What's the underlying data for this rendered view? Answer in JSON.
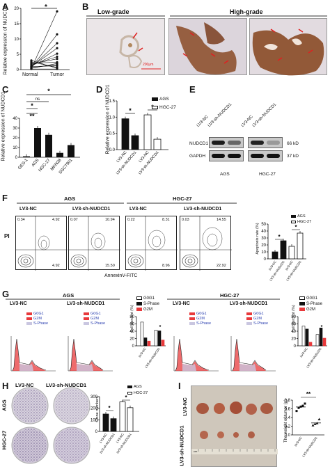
{
  "panels": {
    "A": {
      "letter": "A",
      "ylabel": "Relative expression of NUDCD1",
      "yticks": [
        "0",
        "5",
        "10",
        "15",
        "20"
      ],
      "categories": [
        "Normal",
        "Tumor"
      ],
      "sig": "*"
    },
    "B": {
      "letter": "B",
      "low_label": "Low-grade",
      "high_label": "High-grade",
      "scale_bar": "200μm"
    },
    "C": {
      "letter": "C",
      "ylabel": "Relative expression of NUDCD1",
      "yticks": [
        "0",
        "10",
        "20",
        "30",
        "40"
      ],
      "categories": [
        "GES-1",
        "AGS",
        "HGC-27",
        "MKN28",
        "SGC7901"
      ],
      "sig": [
        "*",
        "ns",
        "*",
        "**"
      ]
    },
    "D": {
      "letter": "D",
      "ylabel": "Relative expression of NUDCD1",
      "yticks": [
        "0.0",
        "0.5",
        "1.0",
        "1.5"
      ],
      "legend": [
        "AGS",
        "HGC-27"
      ],
      "categories": [
        "LV3-NC",
        "LV3-sh-NUDCD1",
        "LV3-NC",
        "LV3-sh-NUDCD1"
      ],
      "sig": [
        "*",
        "*"
      ]
    },
    "E": {
      "letter": "E",
      "lanes": [
        "LV3-NC",
        "LV3-sh-NUDCD1",
        "LV3-NC",
        "LV3-sh-NUDCD1"
      ],
      "bands": [
        "NUDCD1",
        "GAPDH"
      ],
      "sizes": [
        "66 kD",
        "37 kD"
      ],
      "groups": [
        "AGS",
        "HGC-27"
      ]
    },
    "F": {
      "letter": "F",
      "groups": [
        "AGS",
        "HGC-27"
      ],
      "plots": [
        {
          "title": "LV3-NC",
          "q": [
            "0.34",
            "4.92",
            "4.92"
          ]
        },
        {
          "title": "LV3-sh-NUDCD1",
          "q": [
            "0.07",
            "10.94",
            "15.50"
          ]
        },
        {
          "title": "LV3-NC",
          "q": [
            "0.22",
            "8.31",
            "8.96"
          ]
        },
        {
          "title": "LV3-sh-NUDCD1",
          "q": [
            "0.03",
            "14.55",
            "22.92"
          ]
        }
      ],
      "ylabel": "PI",
      "xlabel": "AnnexinV-FITC",
      "bar_ylabel": "Apoptosis rate (%)",
      "bar_yticks": [
        "0",
        "10",
        "20",
        "30",
        "40",
        "50"
      ],
      "legend": [
        "AGS",
        "HGC-27"
      ],
      "bar_categories": [
        "LV3-NC",
        "LV3-sh-NUDCD1",
        "LV3-NC",
        "LV3-sh-NUDCD1"
      ],
      "sig": [
        "*",
        "*"
      ]
    },
    "G": {
      "letter": "G",
      "groups": [
        "AGS",
        "HGC-27"
      ],
      "plots": [
        "LV3-NC",
        "LV3-sh-NUDCD1",
        "LV3-NC",
        "LV3-sh-NUDCD1"
      ],
      "hist_legend": [
        "G0G1",
        "G2M",
        "S-Phase"
      ],
      "bar_legend": [
        "G0G1",
        "S-Phase",
        "G2M"
      ],
      "bar_ylabel": "Cell percent (%)",
      "bar_yticks": [
        "0",
        "20",
        "40",
        "60",
        "80"
      ],
      "bar_categories": [
        "LV3-NC",
        "LV3-sh-NUDCD1"
      ],
      "sig": [
        "*",
        "*"
      ]
    },
    "H": {
      "letter": "H",
      "cols": [
        "LV3-NC",
        "LV3-sh-NUDCD1"
      ],
      "rows": [
        "AGS",
        "HGC-27"
      ],
      "bar_ylabel": "Clone numbers",
      "bar_yticks": [
        "0",
        "100",
        "200",
        "300"
      ],
      "legend": [
        "AGS",
        "HGC-27"
      ],
      "bar_categories": [
        "LV3-NC",
        "LV3-sh-NUDCD1",
        "LV3-NC",
        "LV3-sh-NUDCD1"
      ],
      "sig": [
        "*",
        "*"
      ]
    },
    "I": {
      "letter": "I",
      "rows": [
        "LV3-NC",
        "LV3-sh-NUDCD1"
      ],
      "ylabel": "The weight of tumor (g)",
      "yticks": [
        "0.0",
        "0.2",
        "0.4",
        "0.6",
        "0.8"
      ],
      "categories": [
        "LV3-NC",
        "LV3-sh-NUDCD1"
      ],
      "sig": "**",
      "ruler": "cm"
    }
  },
  "colors": {
    "ihc_brown": "#8a4a26",
    "ihc_bg": "#e9e4e6",
    "bar_black": "#111111",
    "g2m_red": "#e8393b",
    "colony_purple": "#6f5b8f"
  },
  "chart_data": [
    {
      "panel": "A",
      "type": "scatter",
      "ylabel": "Relative expression of NUDCD1",
      "ylim": [
        0,
        20
      ],
      "x": [
        "Normal",
        "Tumor"
      ],
      "pairs": [
        [
          0.3,
          19.0
        ],
        [
          0.6,
          11.5
        ],
        [
          0.8,
          8.6
        ],
        [
          1.0,
          7.0
        ],
        [
          1.2,
          5.2
        ],
        [
          1.5,
          4.2
        ],
        [
          1.8,
          3.5
        ],
        [
          2.1,
          2.4
        ],
        [
          0.4,
          2.0
        ],
        [
          0.6,
          1.6
        ],
        [
          1.0,
          1.2
        ],
        [
          2.5,
          0.7
        ],
        [
          3.0,
          0.4
        ],
        [
          0.2,
          0.2
        ]
      ]
    },
    {
      "panel": "C",
      "type": "bar",
      "ylabel": "Relative expression of NUDCD1",
      "ylim": [
        0,
        40
      ],
      "categories": [
        "GES-1",
        "AGS",
        "HGC-27",
        "MKN28",
        "SGC7901"
      ],
      "values": [
        1.0,
        30.0,
        23.0,
        4.5,
        12.5
      ]
    },
    {
      "panel": "D",
      "type": "bar",
      "ylabel": "Relative expression of NUDCD1",
      "ylim": [
        0,
        1.5
      ],
      "categories": [
        "LV3-NC",
        "LV3-sh-NUDCD1"
      ],
      "series": [
        {
          "name": "AGS",
          "values": [
            0.95,
            0.43
          ]
        },
        {
          "name": "HGC-27",
          "values": [
            1.07,
            0.32
          ]
        }
      ]
    },
    {
      "panel": "F",
      "type": "bar",
      "ylabel": "Apoptosis rate (%)",
      "ylim": [
        0,
        50
      ],
      "categories": [
        "LV3-NC",
        "LV3-sh-NUDCD1"
      ],
      "series": [
        {
          "name": "AGS",
          "values": [
            10,
            26
          ]
        },
        {
          "name": "HGC-27",
          "values": [
            18,
            37
          ]
        }
      ]
    },
    {
      "panel": "G-AGS",
      "type": "bar",
      "ylabel": "Cell percent (%)",
      "ylim": [
        0,
        80
      ],
      "categories": [
        "LV3-NC",
        "LV3-sh-NUDCD1"
      ],
      "series": [
        {
          "name": "G0G1",
          "values": [
            65,
            43
          ]
        },
        {
          "name": "S-Phase",
          "values": [
            22,
            41
          ]
        },
        {
          "name": "G2M",
          "values": [
            13,
            16
          ]
        }
      ]
    },
    {
      "panel": "G-HGC-27",
      "type": "bar",
      "ylabel": "Cell percent (%)",
      "ylim": [
        0,
        80
      ],
      "categories": [
        "LV3-NC",
        "LV3-sh-NUDCD1"
      ],
      "series": [
        {
          "name": "G0G1",
          "values": [
            54,
            31
          ]
        },
        {
          "name": "S-Phase",
          "values": [
            46,
            49
          ]
        },
        {
          "name": "G2M",
          "values": [
            10,
            21
          ]
        }
      ]
    },
    {
      "panel": "H",
      "type": "bar",
      "ylabel": "Clone numbers",
      "ylim": [
        0,
        300
      ],
      "categories": [
        "LV3-NC",
        "LV3-sh-NUDCD1"
      ],
      "series": [
        {
          "name": "AGS",
          "values": [
            150,
            110
          ]
        },
        {
          "name": "HGC-27",
          "values": [
            255,
            205
          ]
        }
      ]
    },
    {
      "panel": "I",
      "type": "scatter",
      "ylabel": "The weight of tumor (g)",
      "ylim": [
        0,
        0.8
      ],
      "categories": [
        "LV3-NC",
        "LV3-sh-NUDCD1"
      ],
      "series": [
        {
          "name": "LV3-NC",
          "values": [
            0.55,
            0.62,
            0.65,
            0.67,
            0.72
          ]
        },
        {
          "name": "LV3-sh-NUDCD1",
          "values": [
            0.22,
            0.25,
            0.27,
            0.36
          ]
        }
      ]
    }
  ]
}
